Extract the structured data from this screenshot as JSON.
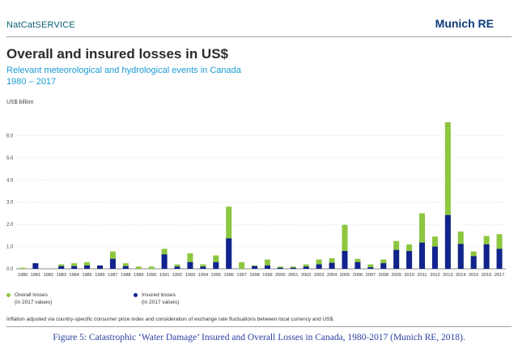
{
  "header": {
    "brand_left": "NatCatSERVICE",
    "brand_right": "Munich RE"
  },
  "title": "Overall and insured losses in US$",
  "subtitle": "Relevant meteorological and hydrological events in Canada 1980 – 2017",
  "unit_label": "US$ billion",
  "legend": {
    "overall": {
      "label": "Overall losses",
      "note": "(in 2017 values)"
    },
    "insured": {
      "label": "Insured losses",
      "note": "(in 2017 values)"
    }
  },
  "footnote": "Inflation adjusted via country-specific consumer price index and consideration of exchange rate fluctuations between local currency and US$.",
  "caption": "Figure 5: Catastrophic ‘Water Damage’ Insured and Overall Losses in Canada, 1980-2017 (Munich RE, 2018).",
  "colors": {
    "overall": "#8dc63f",
    "insured": "#12238f",
    "axis": "#666666",
    "grid": "#d7d7d7"
  },
  "chart_data": {
    "type": "bar",
    "stacked_overlay": true,
    "categories": [
      "1980",
      "1981",
      "1982",
      "1983",
      "1984",
      "1985",
      "1986",
      "1987",
      "1988",
      "1989",
      "1990",
      "1991",
      "1992",
      "1993",
      "1994",
      "1995",
      "1996",
      "1997",
      "1998",
      "1999",
      "2000",
      "2001",
      "2002",
      "2003",
      "2004",
      "2005",
      "2006",
      "2007",
      "2008",
      "2009",
      "2010",
      "2011",
      "2012",
      "2013",
      "2014",
      "2015",
      "2016",
      "2017"
    ],
    "series": [
      {
        "name": "Overall losses",
        "values": [
          0.05,
          0.25,
          0,
          0.2,
          0.25,
          0.3,
          0.15,
          0.78,
          0.25,
          0.1,
          0.1,
          0.9,
          0.2,
          0.7,
          0.2,
          0.6,
          2.8,
          0.3,
          0.15,
          0.42,
          0.1,
          0.1,
          0.2,
          0.42,
          0.48,
          1.98,
          0.45,
          0.2,
          0.42,
          1.25,
          1.1,
          2.5,
          1.45,
          6.6,
          1.68,
          0.78,
          1.48,
          1.56
        ]
      },
      {
        "name": "Insured losses",
        "values": [
          0,
          0.25,
          0,
          0.12,
          0.12,
          0.15,
          0.15,
          0.45,
          0.12,
          0,
          0,
          0.65,
          0.1,
          0.3,
          0.1,
          0.3,
          1.37,
          0,
          0.12,
          0.15,
          0.05,
          0.05,
          0.1,
          0.2,
          0.27,
          0.8,
          0.3,
          0.07,
          0.25,
          0.85,
          0.8,
          1.18,
          1.0,
          2.42,
          1.12,
          0.57,
          1.1,
          0.9
        ]
      }
    ],
    "title": "Overall and insured losses in US$",
    "ylabel": "US$ billion",
    "ylim": [
      0,
      7.0
    ],
    "yticks": [
      "0.0",
      "1.0",
      "2.0",
      "3.0",
      "4.0",
      "5.0",
      "6.0"
    ],
    "grid": true,
    "legend_position": "bottom-left"
  }
}
